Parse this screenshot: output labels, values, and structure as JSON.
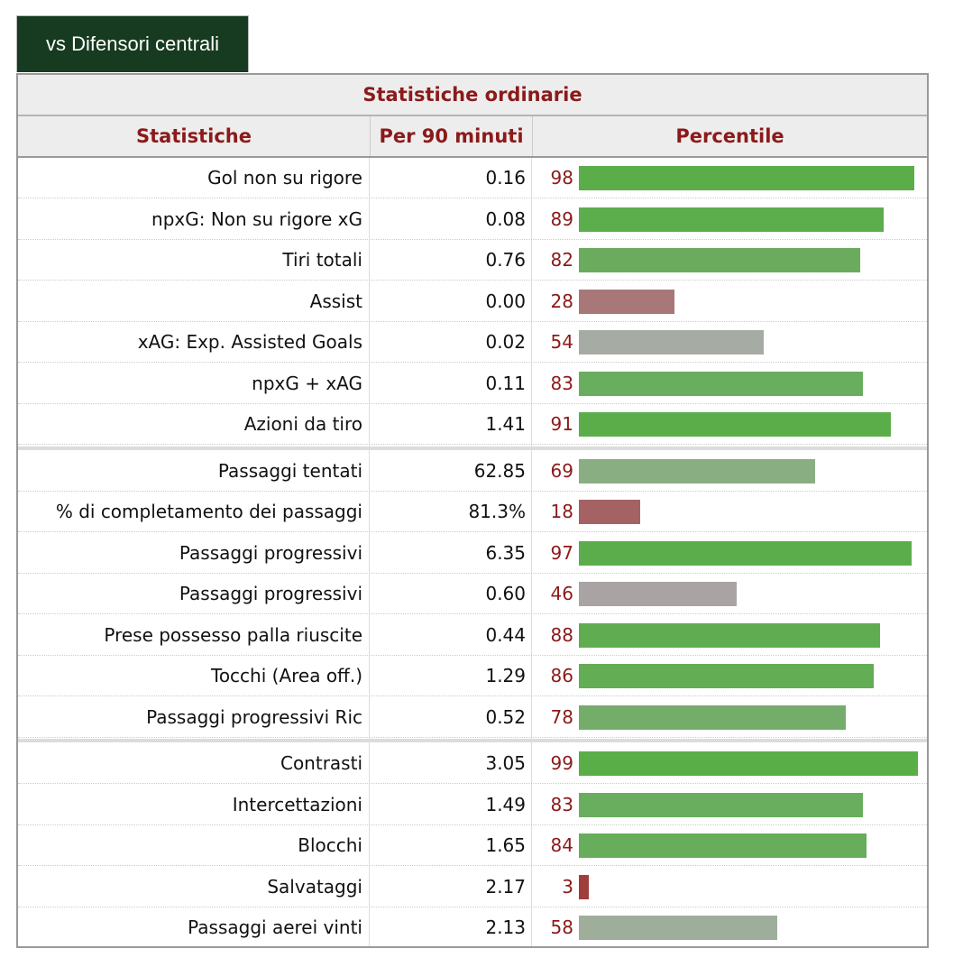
{
  "tab": {
    "label": "vs Difensori centrali"
  },
  "table": {
    "caption": "Statistiche ordinarie",
    "headers": {
      "stat": "Statistiche",
      "per90": "Per 90 minuti",
      "percentile": "Percentile"
    },
    "groups": [
      [
        {
          "label": "Gol non su rigore",
          "value": "0.16",
          "percentile": 98,
          "color": "#5bad4a"
        },
        {
          "label": "npxG: Non su rigore xG",
          "value": "0.08",
          "percentile": 89,
          "color": "#5cad4c"
        },
        {
          "label": "Tiri totali",
          "value": "0.76",
          "percentile": 82,
          "color": "#6aab5e"
        },
        {
          "label": "Assist",
          "value": "0.00",
          "percentile": 28,
          "color": "#a87878"
        },
        {
          "label": "xAG: Exp. Assisted Goals",
          "value": "0.02",
          "percentile": 54,
          "color": "#a6aca3"
        },
        {
          "label": "npxG + xAG",
          "value": "0.11",
          "percentile": 83,
          "color": "#69ad5e"
        },
        {
          "label": "Azioni da tiro",
          "value": "1.41",
          "percentile": 91,
          "color": "#5bad4a"
        }
      ],
      [
        {
          "label": "Passaggi tentati",
          "value": "62.85",
          "percentile": 69,
          "color": "#88ae82"
        },
        {
          "label": "% di completamento dei passaggi",
          "value": "81.3%",
          "percentile": 18,
          "color": "#a56262"
        },
        {
          "label": "Passaggi progressivi",
          "value": "6.35",
          "percentile": 97,
          "color": "#5aad4a"
        },
        {
          "label": "Passaggi progressivi",
          "value": "0.60",
          "percentile": 46,
          "color": "#aaa3a4"
        },
        {
          "label": "Prese possesso palla riuscite",
          "value": "0.44",
          "percentile": 88,
          "color": "#60ad51"
        },
        {
          "label": "Tocchi (Area off.)",
          "value": "1.29",
          "percentile": 86,
          "color": "#63ad54"
        },
        {
          "label": "Passaggi progressivi Ric",
          "value": "0.52",
          "percentile": 78,
          "color": "#74ac6a"
        }
      ],
      [
        {
          "label": "Contrasti",
          "value": "3.05",
          "percentile": 99,
          "color": "#5aae48"
        },
        {
          "label": "Intercettazioni",
          "value": "1.49",
          "percentile": 83,
          "color": "#69ad5e"
        },
        {
          "label": "Blocchi",
          "value": "1.65",
          "percentile": 84,
          "color": "#67ad5b"
        },
        {
          "label": "Salvataggi",
          "value": "2.17",
          "percentile": 3,
          "color": "#a03d3d"
        },
        {
          "label": "Passaggi aerei vinti",
          "value": "2.13",
          "percentile": 58,
          "color": "#9eae9a"
        }
      ]
    ]
  }
}
